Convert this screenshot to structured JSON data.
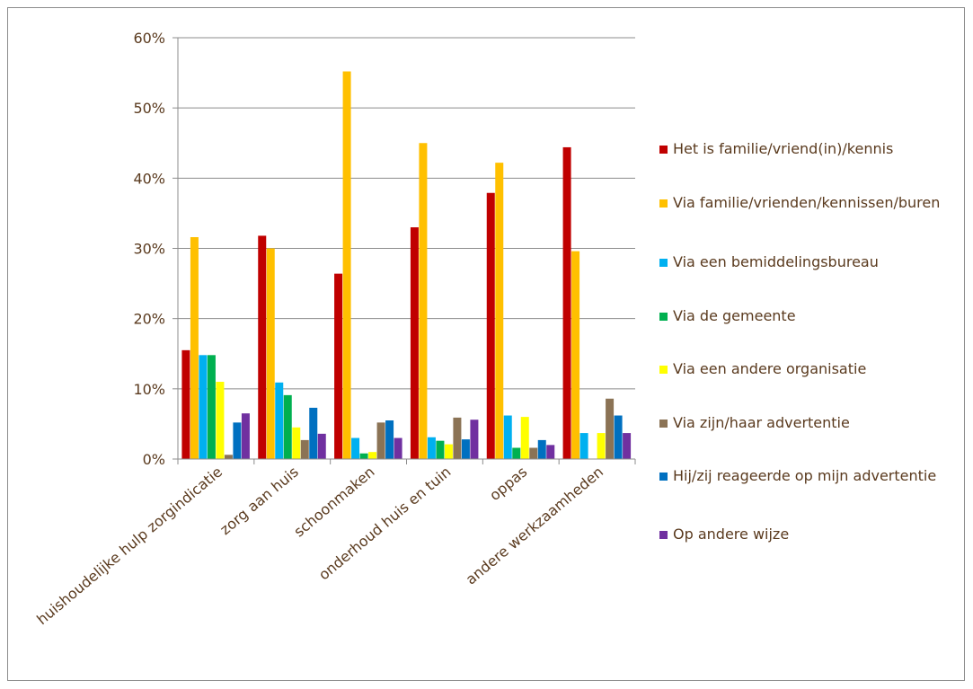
{
  "chart_data": {
    "type": "bar",
    "title": "",
    "xlabel": "",
    "ylabel": "",
    "ylim": [
      0,
      60
    ],
    "y_ticks": [
      "0%",
      "10%",
      "20%",
      "30%",
      "40%",
      "50%",
      "60%"
    ],
    "y_tick_values": [
      0,
      10,
      20,
      30,
      40,
      50,
      60
    ],
    "grid": "horizontal",
    "legend_position": "right",
    "categories": [
      "huishoudelijke hulp zorgindicatie",
      "zorg aan huis",
      "schoonmaken",
      "onderhoud huis en tuin",
      "oppas",
      "andere werkzaamheden"
    ],
    "series": [
      {
        "name": "Het is familie/vriend(in)/kennis",
        "color": "#c00000",
        "values": [
          15.5,
          31.8,
          26.4,
          33.0,
          37.9,
          44.4
        ]
      },
      {
        "name": "Via familie/vrienden/kennissen/buren",
        "color": "#ffc000",
        "values": [
          31.6,
          30.0,
          55.2,
          45.0,
          42.2,
          29.6
        ]
      },
      {
        "name": "Via een bemiddelingsbureau",
        "color": "#00b0f0",
        "values": [
          14.8,
          10.9,
          3.0,
          3.1,
          6.2,
          3.7
        ]
      },
      {
        "name": "Via de gemeente",
        "color": "#00b050",
        "values": [
          14.8,
          9.1,
          0.8,
          2.6,
          1.6,
          0.0
        ]
      },
      {
        "name": "Via een andere organisatie",
        "color": "#ffff00",
        "values": [
          11.0,
          4.5,
          1.0,
          2.1,
          6.0,
          3.7
        ]
      },
      {
        "name": "Via zijn/haar advertentie",
        "color": "#8b7355",
        "values": [
          0.6,
          2.7,
          5.2,
          5.9,
          1.6,
          8.6
        ]
      },
      {
        "name": "Hij/zij reageerde op mijn advertentie",
        "color": "#0070c0",
        "values": [
          5.2,
          7.3,
          5.5,
          2.8,
          2.7,
          6.2
        ]
      },
      {
        "name": "Op andere wijze",
        "color": "#7030a0",
        "values": [
          6.5,
          3.6,
          3.0,
          5.6,
          2.0,
          3.7
        ]
      }
    ]
  }
}
